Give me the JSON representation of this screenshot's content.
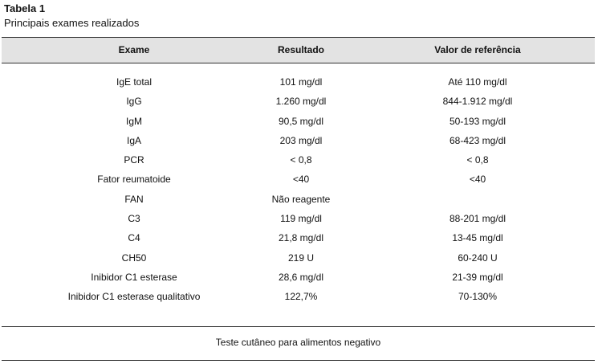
{
  "table": {
    "title": "Tabela 1",
    "subtitle": "Principais exames realizados",
    "headers": {
      "exam": "Exame",
      "result": "Resultado",
      "reference": "Valor de referência"
    },
    "rows": [
      {
        "exam": "IgE total",
        "result": "101 mg/dl",
        "reference": "Até 110 mg/dl"
      },
      {
        "exam": "IgG",
        "result": "1.260 mg/dl",
        "reference": "844-1.912 mg/dl"
      },
      {
        "exam": "IgM",
        "result": "90,5 mg/dl",
        "reference": "50-193 mg/dl"
      },
      {
        "exam": "IgA",
        "result": "203 mg/dl",
        "reference": "68-423 mg/dl"
      },
      {
        "exam": "PCR",
        "result": "< 0,8",
        "reference": "< 0,8"
      },
      {
        "exam": "Fator reumatoide",
        "result": "<40",
        "reference": "<40"
      },
      {
        "exam": "FAN",
        "result": "Não reagente",
        "reference": ""
      },
      {
        "exam": "C3",
        "result": "119 mg/dl",
        "reference": "88-201 mg/dl"
      },
      {
        "exam": "C4",
        "result": "21,8 mg/dl",
        "reference": "13-45 mg/dl"
      },
      {
        "exam": "CH50",
        "result": "219 U",
        "reference": "60-240 U"
      },
      {
        "exam": "Inibidor C1 esterase",
        "result": "28,6 mg/dl",
        "reference": "21-39 mg/dl"
      },
      {
        "exam": "Inibidor C1 esterase qualitativo",
        "result": "122,7%",
        "reference": "70-130%"
      }
    ],
    "footer_note": "Teste cutâneo para alimentos negativo"
  }
}
